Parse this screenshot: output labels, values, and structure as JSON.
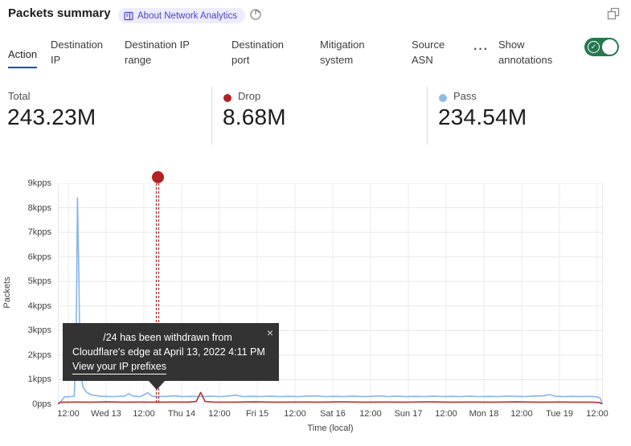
{
  "header": {
    "title": "Packets summary",
    "badge_label": "About Network Analytics"
  },
  "tabs": {
    "items": [
      {
        "label": "Action",
        "active": true
      },
      {
        "label": "Destination IP",
        "active": false
      },
      {
        "label": "Destination IP range",
        "active": false
      },
      {
        "label": "Destination port",
        "active": false
      },
      {
        "label": "Mitigation system",
        "active": false
      },
      {
        "label": "Source ASN",
        "active": false
      }
    ],
    "more_label": "···",
    "annotations_toggle": {
      "label": "Show annotations",
      "state": "on",
      "color": "#26784e"
    }
  },
  "stats": [
    {
      "label": "Total",
      "value": "243.23M",
      "dot_color": null
    },
    {
      "label": "Drop",
      "value": "8.68M",
      "dot_color": "#b42121"
    },
    {
      "label": "Pass",
      "value": "234.54M",
      "dot_color": "#8fbbea"
    }
  ],
  "tooltip": {
    "line1": "/24 has been withdrawn from",
    "line2": "Cloudflare's edge at April 13, 2022 4:11 PM",
    "link": "View your IP prefixes",
    "close": "×"
  },
  "chart_data": {
    "type": "line",
    "title": "Packets summary",
    "xlabel": "Time (local)",
    "ylabel": "Packets",
    "ylim": [
      0,
      9000
    ],
    "grid": true,
    "y_ticks": [
      {
        "label": "9kpps",
        "value": 9000
      },
      {
        "label": "8kpps",
        "value": 8000
      },
      {
        "label": "7kpps",
        "value": 7000
      },
      {
        "label": "6kpps",
        "value": 6000
      },
      {
        "label": "5kpps",
        "value": 5000
      },
      {
        "label": "4kpps",
        "value": 4000
      },
      {
        "label": "3kpps",
        "value": 3000
      },
      {
        "label": "2kpps",
        "value": 2000
      },
      {
        "label": "1kpps",
        "value": 1000
      },
      {
        "label": "0pps",
        "value": 0
      }
    ],
    "x_ticks": [
      {
        "label": "12:00",
        "f": 0.0192
      },
      {
        "label": "Wed 13",
        "f": 0.0885
      },
      {
        "label": "12:00",
        "f": 0.1578
      },
      {
        "label": "Thu 14",
        "f": 0.2272
      },
      {
        "label": "12:00",
        "f": 0.2965
      },
      {
        "label": "Fri 15",
        "f": 0.3658
      },
      {
        "label": "12:00",
        "f": 0.4351
      },
      {
        "label": "Sat 16",
        "f": 0.5044
      },
      {
        "label": "12:00",
        "f": 0.5737
      },
      {
        "label": "Sun 17",
        "f": 0.6431
      },
      {
        "label": "12:00",
        "f": 0.7124
      },
      {
        "label": "Mon 18",
        "f": 0.7817
      },
      {
        "label": "12:00",
        "f": 0.851
      },
      {
        "label": "Tue 19",
        "f": 0.9204
      },
      {
        "label": "12:00",
        "f": 0.9897
      }
    ],
    "series": [
      {
        "name": "Pass",
        "color": "#85b4ee",
        "unit": "pps",
        "points": [
          [
            0.0,
            0
          ],
          [
            0.006,
            120
          ],
          [
            0.012,
            300
          ],
          [
            0.024,
            310
          ],
          [
            0.03,
            330
          ],
          [
            0.0335,
            2500
          ],
          [
            0.036,
            8400
          ],
          [
            0.0385,
            5200
          ],
          [
            0.041,
            1400
          ],
          [
            0.046,
            700
          ],
          [
            0.053,
            480
          ],
          [
            0.062,
            380
          ],
          [
            0.08,
            320
          ],
          [
            0.1,
            310
          ],
          [
            0.122,
            330
          ],
          [
            0.13,
            430
          ],
          [
            0.138,
            330
          ],
          [
            0.152,
            310
          ],
          [
            0.165,
            470
          ],
          [
            0.172,
            330
          ],
          [
            0.183,
            310
          ],
          [
            0.2,
            320
          ],
          [
            0.215,
            340
          ],
          [
            0.228,
            310
          ],
          [
            0.245,
            320
          ],
          [
            0.262,
            310
          ],
          [
            0.28,
            330
          ],
          [
            0.296,
            310
          ],
          [
            0.31,
            330
          ],
          [
            0.326,
            370
          ],
          [
            0.34,
            310
          ],
          [
            0.356,
            320
          ],
          [
            0.37,
            310
          ],
          [
            0.39,
            330
          ],
          [
            0.408,
            310
          ],
          [
            0.425,
            320
          ],
          [
            0.44,
            310
          ],
          [
            0.458,
            330
          ],
          [
            0.474,
            340
          ],
          [
            0.49,
            310
          ],
          [
            0.508,
            320
          ],
          [
            0.524,
            310
          ],
          [
            0.54,
            330
          ],
          [
            0.558,
            310
          ],
          [
            0.574,
            320
          ],
          [
            0.59,
            340
          ],
          [
            0.606,
            310
          ],
          [
            0.622,
            330
          ],
          [
            0.64,
            310
          ],
          [
            0.656,
            320
          ],
          [
            0.672,
            310
          ],
          [
            0.69,
            330
          ],
          [
            0.706,
            310
          ],
          [
            0.722,
            320
          ],
          [
            0.74,
            310
          ],
          [
            0.756,
            330
          ],
          [
            0.772,
            310
          ],
          [
            0.79,
            320
          ],
          [
            0.806,
            310
          ],
          [
            0.824,
            330
          ],
          [
            0.84,
            320
          ],
          [
            0.856,
            310
          ],
          [
            0.872,
            330
          ],
          [
            0.89,
            340
          ],
          [
            0.903,
            390
          ],
          [
            0.912,
            330
          ],
          [
            0.928,
            310
          ],
          [
            0.944,
            320
          ],
          [
            0.96,
            310
          ],
          [
            0.976,
            320
          ],
          [
            0.988,
            300
          ],
          [
            0.995,
            260
          ],
          [
            0.999,
            0
          ]
        ]
      },
      {
        "name": "Drop",
        "color": "#b3312c",
        "unit": "pps",
        "points": [
          [
            0.0,
            0
          ],
          [
            0.004,
            80
          ],
          [
            0.03,
            90
          ],
          [
            0.06,
            85
          ],
          [
            0.09,
            95
          ],
          [
            0.12,
            85
          ],
          [
            0.15,
            90
          ],
          [
            0.18,
            85
          ],
          [
            0.21,
            90
          ],
          [
            0.24,
            90
          ],
          [
            0.254,
            110
          ],
          [
            0.262,
            480
          ],
          [
            0.27,
            110
          ],
          [
            0.285,
            90
          ],
          [
            0.32,
            85
          ],
          [
            0.36,
            95
          ],
          [
            0.4,
            85
          ],
          [
            0.44,
            90
          ],
          [
            0.48,
            85
          ],
          [
            0.52,
            95
          ],
          [
            0.56,
            85
          ],
          [
            0.6,
            90
          ],
          [
            0.64,
            85
          ],
          [
            0.68,
            95
          ],
          [
            0.72,
            85
          ],
          [
            0.76,
            90
          ],
          [
            0.8,
            85
          ],
          [
            0.84,
            95
          ],
          [
            0.88,
            85
          ],
          [
            0.92,
            90
          ],
          [
            0.95,
            85
          ],
          [
            0.98,
            85
          ],
          [
            0.994,
            70
          ],
          [
            0.999,
            0
          ]
        ]
      }
    ],
    "annotation": {
      "f": 0.1829,
      "color": "#b32222",
      "style": "double-dashed-vertical-with-dot"
    }
  }
}
